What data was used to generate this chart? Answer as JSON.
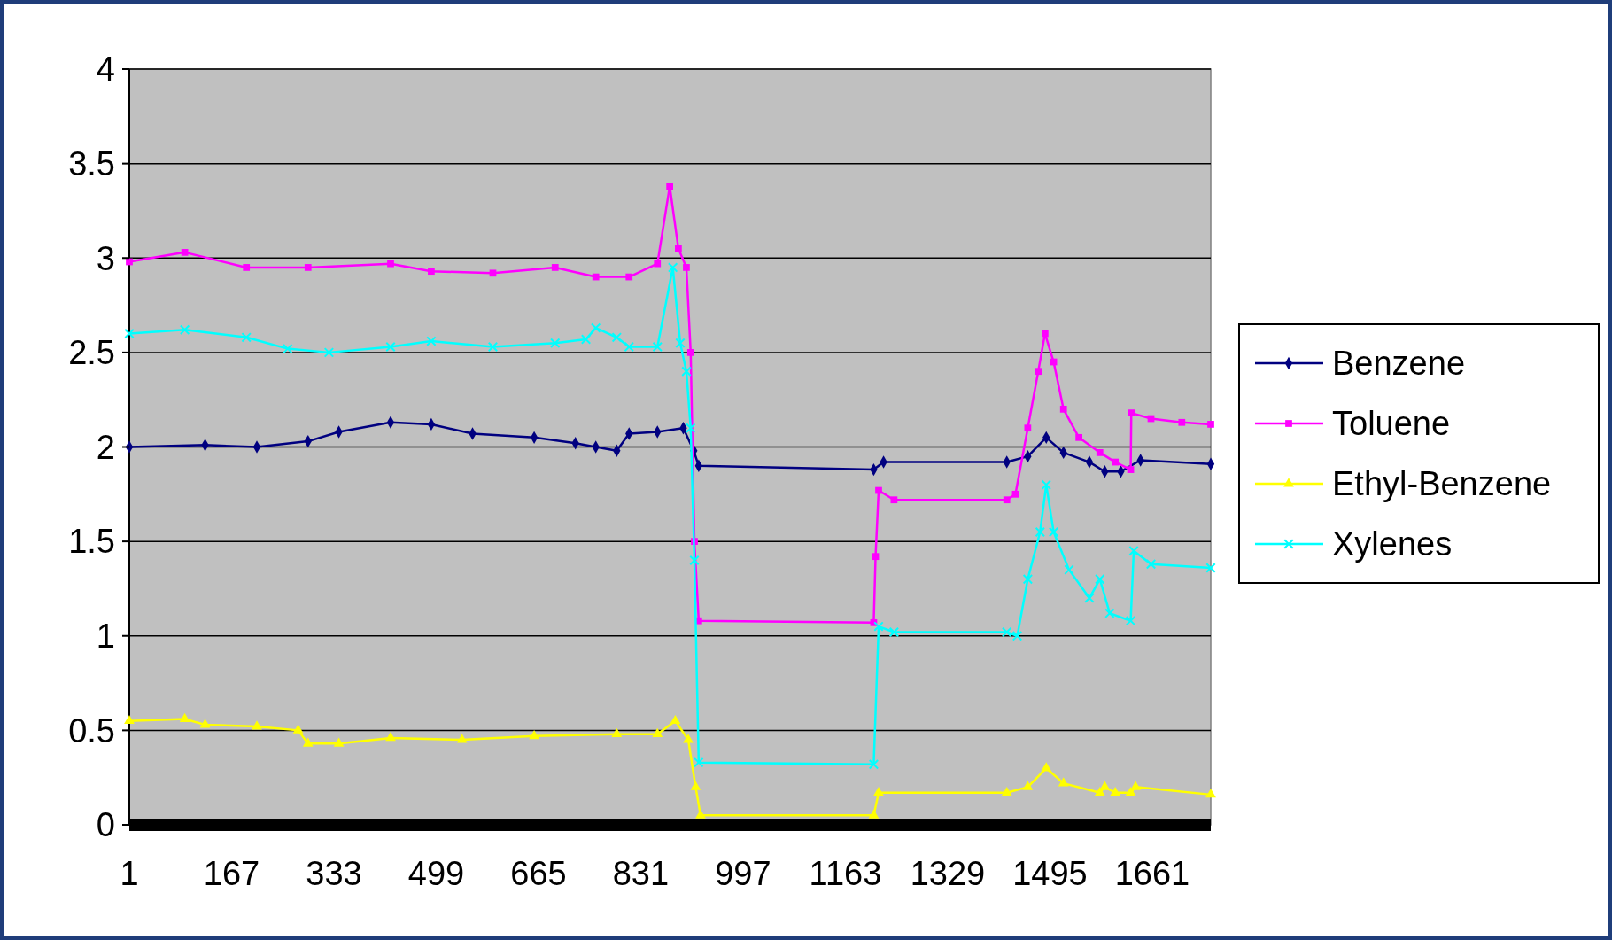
{
  "chart_data": {
    "type": "line",
    "xlim": [
      1,
      1756
    ],
    "xticks": [
      1,
      167,
      333,
      499,
      665,
      831,
      997,
      1163,
      1329,
      1495,
      1661
    ],
    "ylim": [
      0,
      4
    ],
    "yticks": [
      0,
      0.5,
      1,
      1.5,
      2,
      2.5,
      3,
      3.5,
      4
    ],
    "grid": "y",
    "legend": "right",
    "line_style": "solid",
    "series": [
      {
        "name": "Benzene",
        "color": "#000080",
        "marker": "diamond",
        "x": [
          1,
          124,
          208,
          291,
          341,
          425,
          491,
          558,
          658,
          725,
          758,
          792,
          812,
          858,
          900,
          917,
          925,
          1209,
          1225,
          1425,
          1459,
          1489,
          1517,
          1559,
          1584,
          1610,
          1642,
          1756
        ],
        "values": [
          2.0,
          2.01,
          2.0,
          2.03,
          2.08,
          2.13,
          2.12,
          2.07,
          2.05,
          2.02,
          2.0,
          1.98,
          2.07,
          2.08,
          2.1,
          1.98,
          1.9,
          1.88,
          1.92,
          1.92,
          1.95,
          2.05,
          1.97,
          1.92,
          1.87,
          1.87,
          1.93,
          1.91
        ]
      },
      {
        "name": "Toluene",
        "color": "#ff00ff",
        "marker": "square",
        "x": [
          1,
          91,
          191,
          291,
          425,
          491,
          591,
          692,
          758,
          812,
          858,
          878,
          892,
          905,
          912,
          918,
          925,
          1209,
          1212,
          1217,
          1242,
          1425,
          1439,
          1459,
          1476,
          1487,
          1501,
          1517,
          1542,
          1576,
          1601,
          1626,
          1627,
          1659,
          1709,
          1756
        ],
        "values": [
          2.98,
          3.03,
          2.95,
          2.95,
          2.97,
          2.93,
          2.92,
          2.95,
          2.9,
          2.9,
          2.97,
          3.38,
          3.05,
          2.95,
          2.5,
          1.5,
          1.08,
          1.07,
          1.42,
          1.77,
          1.72,
          1.72,
          1.75,
          2.1,
          2.4,
          2.6,
          2.45,
          2.2,
          2.05,
          1.97,
          1.92,
          1.88,
          2.18,
          2.15,
          2.13,
          2.12
        ]
      },
      {
        "name": "Ethyl-Benzene",
        "color": "#ffff00",
        "marker": "triangle",
        "x": [
          1,
          91,
          124,
          208,
          275,
          291,
          341,
          425,
          541,
          658,
          792,
          858,
          887,
          908,
          920,
          928,
          1209,
          1217,
          1425,
          1459,
          1489,
          1517,
          1576,
          1584,
          1601,
          1626,
          1634,
          1756
        ],
        "values": [
          0.55,
          0.56,
          0.53,
          0.52,
          0.5,
          0.43,
          0.43,
          0.46,
          0.45,
          0.47,
          0.48,
          0.48,
          0.55,
          0.45,
          0.2,
          0.05,
          0.05,
          0.17,
          0.17,
          0.2,
          0.3,
          0.22,
          0.17,
          0.2,
          0.17,
          0.17,
          0.2,
          0.16
        ]
      },
      {
        "name": "Xylenes",
        "color": "#00ffff",
        "marker": "cross",
        "x": [
          1,
          91,
          191,
          258,
          325,
          425,
          491,
          591,
          692,
          742,
          758,
          792,
          812,
          858,
          883,
          895,
          905,
          912,
          918,
          925,
          1209,
          1217,
          1242,
          1425,
          1442,
          1459,
          1479,
          1489,
          1501,
          1526,
          1559,
          1576,
          1592,
          1626,
          1631,
          1659,
          1756
        ],
        "values": [
          2.6,
          2.62,
          2.58,
          2.52,
          2.5,
          2.53,
          2.56,
          2.53,
          2.55,
          2.57,
          2.63,
          2.58,
          2.53,
          2.53,
          2.95,
          2.55,
          2.4,
          2.1,
          1.4,
          0.33,
          0.32,
          1.05,
          1.02,
          1.02,
          1.0,
          1.3,
          1.55,
          1.8,
          1.55,
          1.35,
          1.2,
          1.3,
          1.12,
          1.08,
          1.45,
          1.38,
          1.36
        ]
      }
    ]
  }
}
